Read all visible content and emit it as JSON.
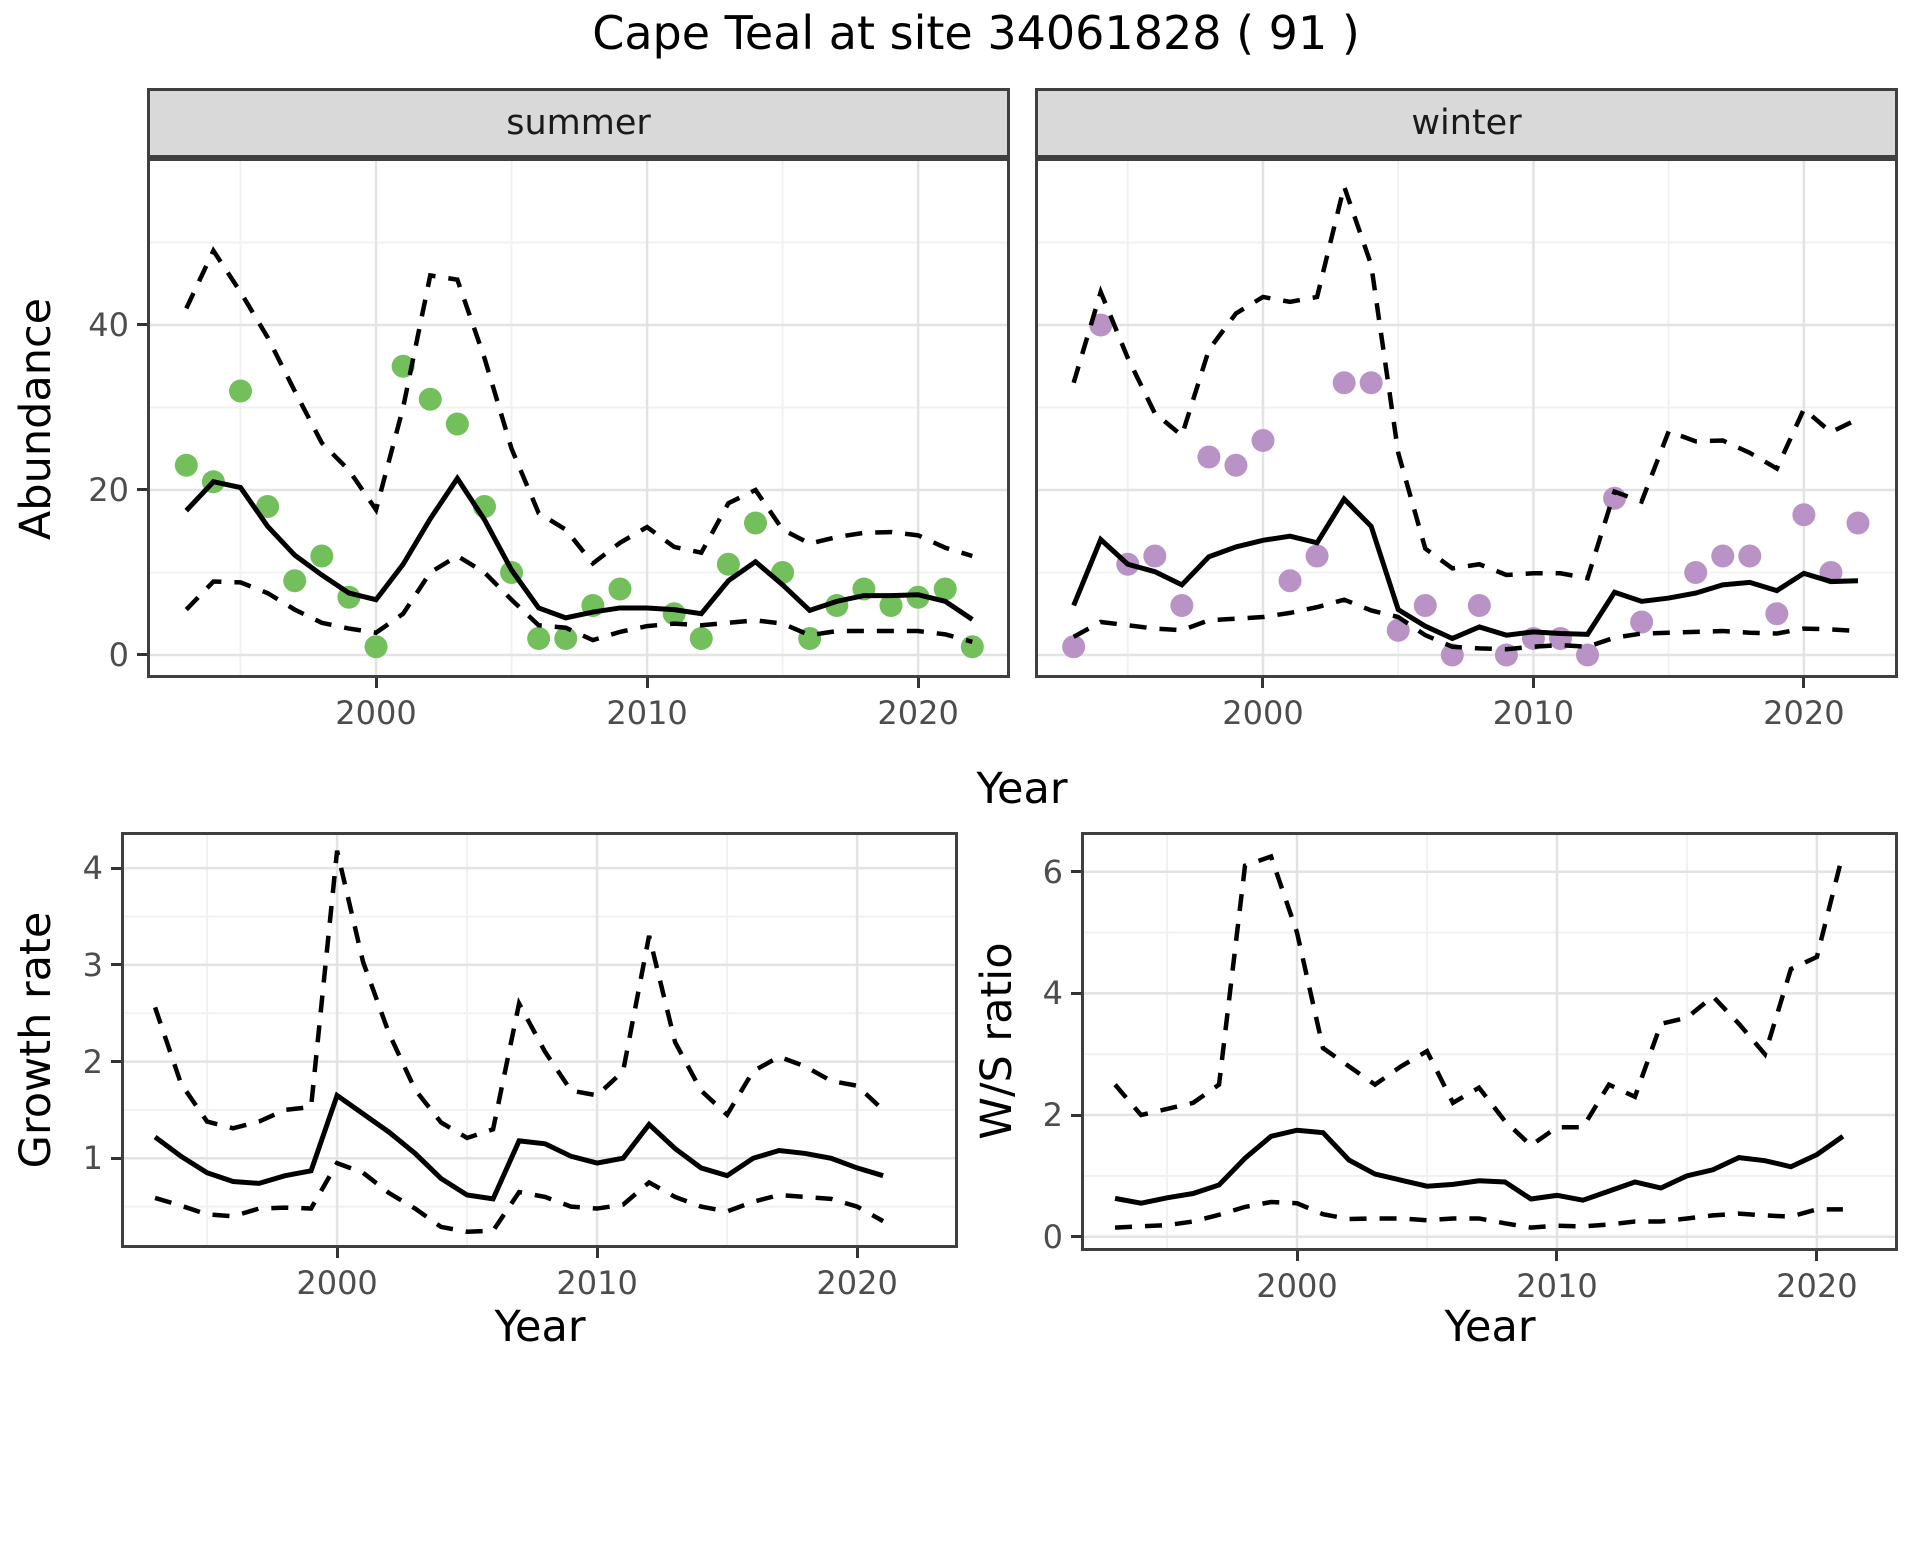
{
  "title": "Cape Teal at site 34061828 ( 91 )",
  "facets": [
    "summer",
    "winter"
  ],
  "labels": {
    "year": "Year"
  },
  "colors": {
    "summer_point": "#72bf5c",
    "winter_point": "#b992c6",
    "line": "#000000",
    "strip_bg": "#d9d9d9",
    "panel_border": "#3f3f3f",
    "grid_major": "#e3e3e3",
    "grid_minor": "#f1f1f1",
    "axis_text": "#4d4d4d"
  },
  "chart_data": [
    {
      "id": "abundance_summer",
      "type": "line",
      "facet": "summer",
      "xlabel": "Year",
      "ylabel": "Abundance",
      "xlim": [
        1991.55,
        2023.39
      ],
      "ylim": [
        -2.79,
        60.24
      ],
      "x_ticks": [
        2000,
        2010,
        2020
      ],
      "x_minor": [
        1995,
        2005,
        2015
      ],
      "y_ticks": [
        0,
        20,
        40
      ],
      "y_minor": [
        10,
        30,
        50
      ],
      "grid": true,
      "legend": "none",
      "series": [
        {
          "name": "observed",
          "style": "points",
          "color": "#72bf5c",
          "x": [
            1993,
            1994,
            1995,
            1996,
            1997,
            1998,
            1999,
            2000,
            2001,
            2002,
            2003,
            2004,
            2005,
            2006,
            2007,
            2008,
            2009,
            2011,
            2012,
            2013,
            2014,
            2015,
            2016,
            2017,
            2018,
            2019,
            2020,
            2021,
            2022
          ],
          "y": [
            23,
            21,
            32,
            18,
            9,
            12,
            7,
            1,
            35,
            31,
            28,
            18,
            10,
            2,
            2,
            6,
            8,
            5,
            2,
            11,
            16,
            10,
            2,
            6,
            8,
            6,
            7,
            8,
            1
          ]
        },
        {
          "name": "fitted mean",
          "style": "solid",
          "color": "#000000",
          "x": [
            1993,
            1994,
            1995,
            1996,
            1997,
            1998,
            1999,
            2000,
            2001,
            2002,
            2003,
            2004,
            2005,
            2006,
            2007,
            2008,
            2009,
            2010,
            2011,
            2012,
            2013,
            2014,
            2015,
            2016,
            2017,
            2018,
            2019,
            2020,
            2021,
            2022
          ],
          "y": [
            17.5,
            21,
            20.3,
            15.6,
            12.1,
            9.7,
            7.5,
            6.7,
            11,
            16.5,
            21.4,
            16.4,
            10.3,
            5.7,
            4.5,
            5.2,
            5.7,
            5.7,
            5.5,
            5.0,
            9.0,
            11.3,
            8.5,
            5.4,
            6.5,
            7.2,
            7.2,
            7.3,
            6.5,
            4.3
          ]
        },
        {
          "name": "upper CI",
          "style": "dashed",
          "color": "#000000",
          "x": [
            1993,
            1994,
            1995,
            1996,
            1997,
            1998,
            1999,
            2000,
            2001,
            2002,
            2003,
            2004,
            2005,
            2006,
            2007,
            2008,
            2009,
            2010,
            2011,
            2012,
            2013,
            2014,
            2015,
            2016,
            2017,
            2018,
            2019,
            2020,
            2021,
            2022
          ],
          "y": [
            42,
            49,
            44,
            38.5,
            32,
            25.7,
            22.4,
            17.6,
            30,
            46,
            45.5,
            36,
            25,
            17.2,
            15.2,
            11.1,
            13.6,
            15.5,
            13.1,
            12.4,
            18.4,
            20,
            15.2,
            13.5,
            14.3,
            14.8,
            14.9,
            14.5,
            13,
            12
          ]
        },
        {
          "name": "lower CI",
          "style": "dashed",
          "color": "#000000",
          "x": [
            1993,
            1994,
            1995,
            1996,
            1997,
            1998,
            1999,
            2000,
            2001,
            2002,
            2003,
            2004,
            2005,
            2006,
            2007,
            2008,
            2009,
            2010,
            2011,
            2012,
            2013,
            2014,
            2015,
            2016,
            2017,
            2018,
            2019,
            2020,
            2021,
            2022
          ],
          "y": [
            5.5,
            8.9,
            8.8,
            7.5,
            5.5,
            3.9,
            3.2,
            2.7,
            5.0,
            10.0,
            12.0,
            10.0,
            6.7,
            3.6,
            3.3,
            1.8,
            2.8,
            3.5,
            3.8,
            3.6,
            3.9,
            4.2,
            3.8,
            2.4,
            2.9,
            2.9,
            2.9,
            2.9,
            2.5,
            1.6
          ]
        }
      ]
    },
    {
      "id": "abundance_winter",
      "type": "line",
      "facet": "winter",
      "xlabel": "Year",
      "ylabel": "Abundance",
      "xlim": [
        1991.57,
        2023.48
      ],
      "ylim": [
        -2.79,
        60.24
      ],
      "x_ticks": [
        2000,
        2010,
        2020
      ],
      "x_minor": [
        1995,
        2005,
        2015
      ],
      "y_ticks": [
        0,
        20,
        40
      ],
      "y_minor": [
        10,
        30,
        50
      ],
      "grid": true,
      "legend": "none",
      "series": [
        {
          "name": "observed",
          "style": "points",
          "color": "#b992c6",
          "x": [
            1993,
            1994,
            1995,
            1996,
            1997,
            1998,
            1999,
            2000,
            2001,
            2002,
            2003,
            2004,
            2005,
            2006,
            2007,
            2008,
            2009,
            2010,
            2011,
            2012,
            2013,
            2014,
            2016,
            2017,
            2018,
            2019,
            2020,
            2021,
            2022
          ],
          "y": [
            1,
            40,
            11,
            12,
            6,
            24,
            23,
            26,
            9,
            12,
            33,
            33,
            3,
            6,
            0,
            6,
            0,
            2,
            2,
            0,
            19,
            4,
            10,
            12,
            12,
            5,
            17,
            10,
            16
          ]
        },
        {
          "name": "fitted mean",
          "style": "solid",
          "color": "#000000",
          "x": [
            1993,
            1994,
            1995,
            1996,
            1997,
            1998,
            1999,
            2000,
            2001,
            2002,
            2003,
            2004,
            2005,
            2006,
            2007,
            2008,
            2009,
            2010,
            2011,
            2012,
            2013,
            2014,
            2015,
            2016,
            2017,
            2018,
            2019,
            2020,
            2021,
            2022
          ],
          "y": [
            6,
            14,
            11,
            10.1,
            8.5,
            11.9,
            13.1,
            13.9,
            14.4,
            13.6,
            18.9,
            15.6,
            5.5,
            3.5,
            2.0,
            3.4,
            2.4,
            2.8,
            2.6,
            2.5,
            7.6,
            6.5,
            6.9,
            7.5,
            8.5,
            8.8,
            7.8,
            9.9,
            8.9,
            9.0
          ]
        },
        {
          "name": "upper CI",
          "style": "dashed",
          "color": "#000000",
          "x": [
            1993,
            1994,
            1995,
            1996,
            1997,
            1998,
            1999,
            2000,
            2001,
            2002,
            2003,
            2004,
            2005,
            2006,
            2007,
            2008,
            2009,
            2010,
            2011,
            2012,
            2013,
            2014,
            2015,
            2016,
            2017,
            2018,
            2019,
            2020,
            2021,
            2022
          ],
          "y": [
            33,
            44,
            36,
            29.3,
            26.6,
            37,
            41.4,
            43.4,
            42.8,
            43.4,
            56.8,
            47.3,
            24.5,
            12.9,
            10.5,
            11,
            9.7,
            9.9,
            9.9,
            9.3,
            19.8,
            18.6,
            27.1,
            25.9,
            26,
            24.5,
            22.6,
            29.8,
            27,
            28.6
          ]
        },
        {
          "name": "lower CI",
          "style": "dashed",
          "color": "#000000",
          "x": [
            1993,
            1994,
            1995,
            1996,
            1997,
            1998,
            1999,
            2000,
            2001,
            2002,
            2003,
            2004,
            2005,
            2006,
            2007,
            2008,
            2009,
            2010,
            2011,
            2012,
            2013,
            2014,
            2015,
            2016,
            2017,
            2018,
            2019,
            2020,
            2021,
            2022
          ],
          "y": [
            2.2,
            4.0,
            3.6,
            3.2,
            3.0,
            4.2,
            4.4,
            4.6,
            5.1,
            5.8,
            6.7,
            5.4,
            4.6,
            2.4,
            1.0,
            0.8,
            0.7,
            1.0,
            1.2,
            1.0,
            2.1,
            2.6,
            2.7,
            2.8,
            2.9,
            2.7,
            2.6,
            3.2,
            3.1,
            2.9
          ]
        }
      ]
    },
    {
      "id": "growth_rate",
      "type": "line",
      "xlabel": "Year",
      "ylabel": "Growth rate",
      "xlim": [
        1991.69,
        2023.88
      ],
      "ylim": [
        0.072,
        4.374
      ],
      "x_ticks": [
        2000,
        2010,
        2020
      ],
      "x_minor": [
        1995,
        2005,
        2015
      ],
      "y_ticks": [
        1,
        2,
        3,
        4
      ],
      "y_minor": [
        0.5,
        1.5,
        2.5,
        3.5
      ],
      "grid": true,
      "legend": "none",
      "series": [
        {
          "name": "growth rate",
          "style": "solid",
          "color": "#000000",
          "x": [
            1993,
            1994,
            1995,
            1996,
            1997,
            1998,
            1999,
            2000,
            2001,
            2002,
            2003,
            2004,
            2005,
            2006,
            2007,
            2008,
            2009,
            2010,
            2011,
            2012,
            2013,
            2014,
            2015,
            2016,
            2017,
            2018,
            2019,
            2020,
            2021
          ],
          "y": [
            1.22,
            1.02,
            0.85,
            0.76,
            0.74,
            0.82,
            0.87,
            1.65,
            1.46,
            1.27,
            1.05,
            0.79,
            0.62,
            0.58,
            1.18,
            1.15,
            1.02,
            0.95,
            1.0,
            1.35,
            1.1,
            0.9,
            0.82,
            1.0,
            1.08,
            1.05,
            1.0,
            0.9,
            0.82
          ]
        },
        {
          "name": "upper CI",
          "style": "dashed",
          "color": "#000000",
          "x": [
            1993,
            1994,
            1995,
            1996,
            1997,
            1998,
            1999,
            2000,
            2001,
            2002,
            2003,
            2004,
            2005,
            2006,
            2007,
            2008,
            2009,
            2010,
            2011,
            2012,
            2013,
            2014,
            2015,
            2016,
            2017,
            2018,
            2019,
            2020,
            2021
          ],
          "y": [
            2.56,
            1.77,
            1.38,
            1.31,
            1.38,
            1.5,
            1.53,
            4.18,
            3.03,
            2.29,
            1.71,
            1.37,
            1.21,
            1.3,
            2.6,
            2.1,
            1.7,
            1.65,
            1.9,
            3.3,
            2.2,
            1.7,
            1.45,
            1.9,
            2.05,
            1.95,
            1.8,
            1.75,
            1.5
          ]
        },
        {
          "name": "lower CI",
          "style": "dashed",
          "color": "#000000",
          "x": [
            1993,
            1994,
            1995,
            1996,
            1997,
            1998,
            1999,
            2000,
            2001,
            2002,
            2003,
            2004,
            2005,
            2006,
            2007,
            2008,
            2009,
            2010,
            2011,
            2012,
            2013,
            2014,
            2015,
            2016,
            2017,
            2018,
            2019,
            2020,
            2021
          ],
          "y": [
            0.59,
            0.51,
            0.42,
            0.4,
            0.48,
            0.49,
            0.48,
            0.95,
            0.85,
            0.64,
            0.48,
            0.29,
            0.24,
            0.25,
            0.65,
            0.6,
            0.5,
            0.48,
            0.52,
            0.75,
            0.6,
            0.5,
            0.45,
            0.55,
            0.62,
            0.6,
            0.58,
            0.5,
            0.35
          ]
        }
      ]
    },
    {
      "id": "ws_ratio",
      "type": "line",
      "xlabel": "Year",
      "ylabel": "W/S ratio",
      "xlim": [
        1991.69,
        2023.12
      ],
      "ylim": [
        -0.235,
        6.653
      ],
      "x_ticks": [
        2000,
        2010,
        2020
      ],
      "x_minor": [
        1995,
        2005,
        2015
      ],
      "y_ticks": [
        0,
        2,
        4,
        6
      ],
      "y_minor": [
        1,
        3,
        5
      ],
      "grid": true,
      "legend": "none",
      "series": [
        {
          "name": "W/S ratio",
          "style": "solid",
          "color": "#000000",
          "x": [
            1993,
            1994,
            1995,
            1996,
            1997,
            1998,
            1999,
            2000,
            2001,
            2002,
            2003,
            2004,
            2005,
            2006,
            2007,
            2008,
            2009,
            2010,
            2011,
            2012,
            2013,
            2014,
            2015,
            2016,
            2017,
            2018,
            2019,
            2020,
            2021
          ],
          "y": [
            0.63,
            0.55,
            0.64,
            0.71,
            0.85,
            1.29,
            1.65,
            1.75,
            1.71,
            1.26,
            1.03,
            0.93,
            0.83,
            0.86,
            0.92,
            0.9,
            0.62,
            0.68,
            0.6,
            0.75,
            0.9,
            0.8,
            1.0,
            1.1,
            1.3,
            1.25,
            1.15,
            1.35,
            1.65
          ]
        },
        {
          "name": "upper CI",
          "style": "dashed",
          "color": "#000000",
          "x": [
            1993,
            1994,
            1995,
            1996,
            1997,
            1998,
            1999,
            2000,
            2001,
            2002,
            2003,
            2004,
            2005,
            2006,
            2007,
            2008,
            2009,
            2010,
            2011,
            2012,
            2013,
            2014,
            2015,
            2016,
            2017,
            2018,
            2019,
            2020,
            2021
          ],
          "y": [
            2.5,
            2.0,
            2.1,
            2.2,
            2.5,
            6.1,
            6.25,
            5.0,
            3.1,
            2.8,
            2.5,
            2.8,
            3.05,
            2.2,
            2.45,
            1.9,
            1.5,
            1.8,
            1.8,
            2.5,
            2.3,
            3.5,
            3.6,
            3.95,
            3.5,
            3.0,
            4.4,
            4.6,
            6.3
          ]
        },
        {
          "name": "lower CI",
          "style": "dashed",
          "color": "#000000",
          "x": [
            1993,
            1994,
            1995,
            1996,
            1997,
            1998,
            1999,
            2000,
            2001,
            2002,
            2003,
            2004,
            2005,
            2006,
            2007,
            2008,
            2009,
            2010,
            2011,
            2012,
            2013,
            2014,
            2015,
            2016,
            2017,
            2018,
            2019,
            2020,
            2021
          ],
          "y": [
            0.15,
            0.17,
            0.19,
            0.25,
            0.36,
            0.49,
            0.57,
            0.55,
            0.37,
            0.29,
            0.3,
            0.3,
            0.27,
            0.3,
            0.3,
            0.22,
            0.15,
            0.18,
            0.17,
            0.2,
            0.25,
            0.25,
            0.3,
            0.35,
            0.38,
            0.35,
            0.33,
            0.45,
            0.45
          ]
        }
      ]
    }
  ]
}
